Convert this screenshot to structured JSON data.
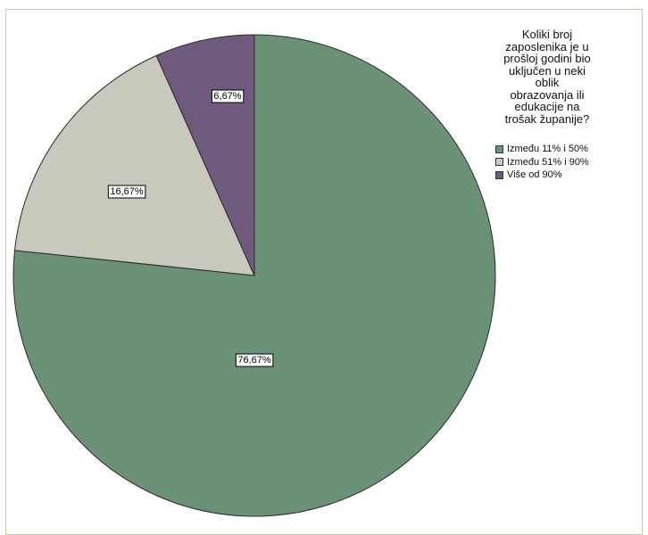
{
  "chart_data": {
    "type": "pie",
    "legend_title": "Koliki broj\nzaposlenika je u\nprošloj godini bio\nuključen u neki\noblik\nobrazovanja ili\nedukacije na\ntrošak županije?",
    "legend_position": "top-right",
    "slices": [
      {
        "label": "Između 11% i 50%",
        "value": 76.67,
        "display": "76,67%",
        "color": "#6b9176"
      },
      {
        "label": "Između 51% i 90%",
        "value": 16.67,
        "display": "16,67%",
        "color": "#c7c9bc"
      },
      {
        "label": "Više od 90%",
        "value": 6.67,
        "display": "6,67%",
        "color": "#6f5a7e"
      }
    ]
  }
}
